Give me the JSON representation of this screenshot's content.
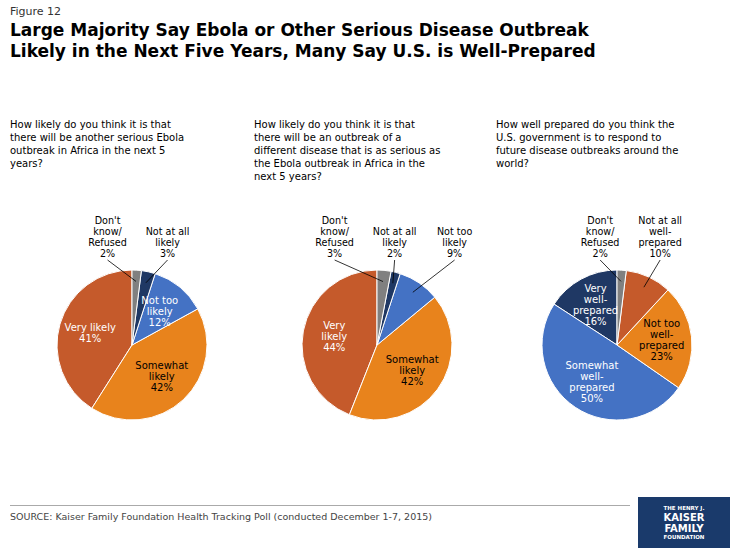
{
  "title": "Large Majority Say Ebola or Other Serious Disease Outbreak\nLikely in the Next Five Years, Many Say U.S. is Well-Prepared",
  "annotations": [
    "Figure 12",
    "SOURCE: Kaiser Family Foundation Health Tracking Poll (conducted December 1-7, 2015)",
    "THE HENRY J.",
    "KAISER",
    "FAMILY",
    "FOUNDATION"
  ],
  "chart_data": [
    {
      "type": "pie",
      "title": "How likely do you think it is that\nthere will be another serious Ebola\noutbreak in Africa in the next 5\nyears?",
      "categories": [
        "Very likely",
        "Somewhat\nlikely",
        "Not too\nlikely",
        "Not at all\nlikely",
        "Don't\nknow/\nRefused"
      ],
      "values": [
        41,
        42,
        12,
        3,
        2
      ],
      "value_labels": [
        "41%",
        "42%",
        "12%",
        "3%",
        "2%"
      ],
      "colors": [
        "#C55A2B",
        "#E8831C",
        "#4472C4",
        "#1F3864",
        "#808080"
      ],
      "data_labels": true
    },
    {
      "type": "pie",
      "title": "How likely do you think it is that\nthere will be an outbreak of a\ndifferent disease that is as serious as\nthe Ebola outbreak in Africa in the\nnext 5 years?",
      "categories": [
        "Very\nlikely",
        "Somewhat\nlikely",
        "Not too\nlikely",
        "Not at all\nlikely",
        "Don't\nknow/\nRefused"
      ],
      "values": [
        44,
        42,
        9,
        2,
        3
      ],
      "value_labels": [
        "44%",
        "42%",
        "9%",
        "2%",
        "3%"
      ],
      "colors": [
        "#C55A2B",
        "#E8831C",
        "#4472C4",
        "#1F3864",
        "#808080"
      ],
      "data_labels": true
    },
    {
      "type": "pie",
      "title": "How well prepared do you think the\nU.S. government is to respond to\nfuture disease outbreaks around the\nworld?",
      "categories": [
        "Very\nwell-\nprepared",
        "Somewhat\nwell-\nprepared",
        "Not too\nwell-\nprepared",
        "Not at all\nwell-\nprepared",
        "Don't\nknow/\nRefused"
      ],
      "values": [
        16,
        50,
        23,
        10,
        2
      ],
      "value_labels": [
        "16%",
        "50%",
        "23%",
        "10%",
        "2%"
      ],
      "colors": [
        "#1F3864",
        "#4472C4",
        "#E8831C",
        "#C55A2B",
        "#808080"
      ],
      "data_labels": true
    }
  ]
}
